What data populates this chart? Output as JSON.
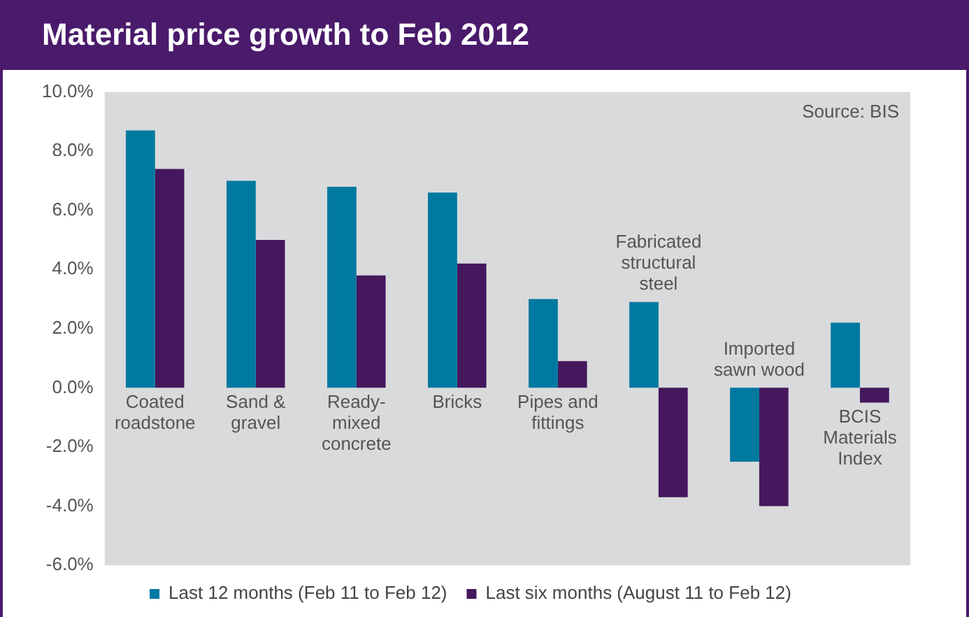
{
  "chart_data": {
    "type": "bar",
    "title": "Material price growth to Feb 2012",
    "categories": [
      "Coated roadstone",
      "Sand & gravel",
      "Ready-mixed concrete",
      "Bricks",
      "Pipes and fittings",
      "Fabricated structural steel",
      "Imported sawn wood",
      "BCIS Materials Index"
    ],
    "series": [
      {
        "name": "Last 12 months (Feb 11 to Feb 12)",
        "color": "#0079a0",
        "values": [
          8.7,
          7.0,
          6.8,
          6.6,
          3.0,
          2.9,
          -2.5,
          2.2
        ]
      },
      {
        "name": "Last six months (August 11 to Feb 12)",
        "color": "#45185e",
        "values": [
          7.4,
          5.0,
          3.8,
          4.2,
          0.9,
          -3.7,
          -4.0,
          -0.5
        ]
      }
    ],
    "ylim": [
      -6,
      10
    ],
    "yticks": [
      {
        "value": -6,
        "label": "-6.0%"
      },
      {
        "value": -4,
        "label": "-4.0%"
      },
      {
        "value": -2,
        "label": "-2.0%"
      },
      {
        "value": 0,
        "label": "0.0%"
      },
      {
        "value": 2,
        "label": "2.0%"
      },
      {
        "value": 4,
        "label": "4.0%"
      },
      {
        "value": 6,
        "label": "6.0%"
      },
      {
        "value": 8,
        "label": "8.0%"
      },
      {
        "value": 10,
        "label": "10.0%"
      }
    ],
    "annotations": [
      "Source: BIS"
    ],
    "legend": "bottom",
    "grid": false
  }
}
